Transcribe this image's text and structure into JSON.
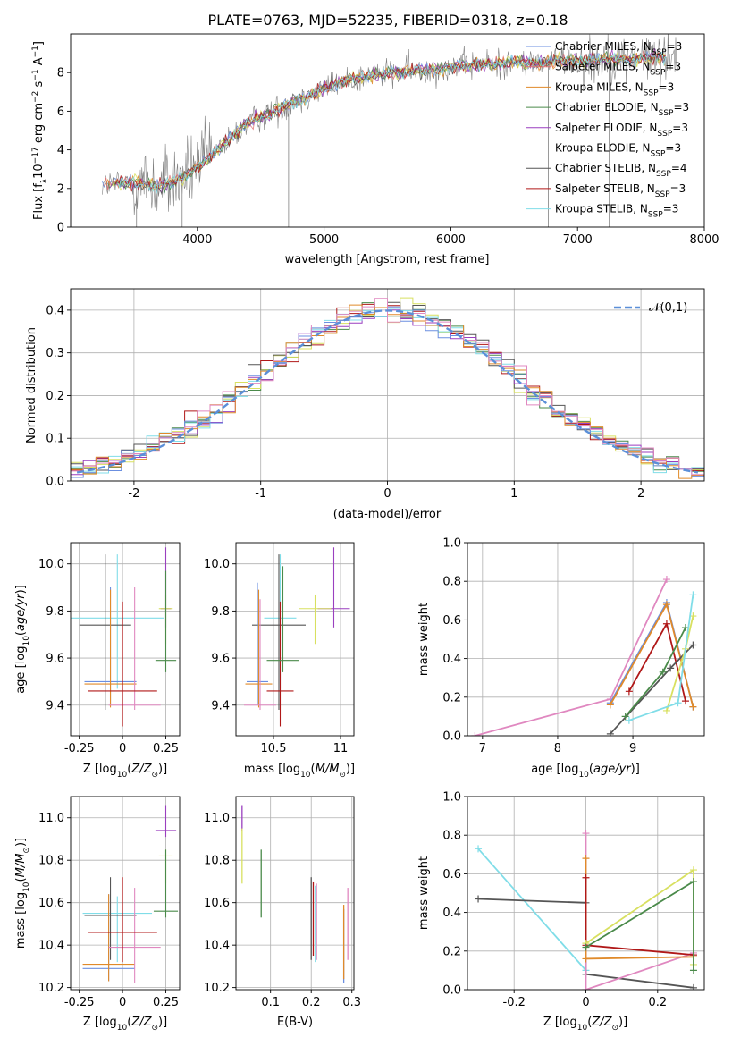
{
  "figure": {
    "title": "PLATE=0763, MJD=52235, FIBERID=0318, z=0.18",
    "colors": {
      "chabrier_miles": "#6b8fe0",
      "salpeter_miles": "#e07070",
      "kroupa_miles": "#e08a2a",
      "chabrier_elodie": "#4a8a4a",
      "salpeter_elodie": "#9a3fbf",
      "kroupa_elodie": "#d8e060",
      "chabrier_stelib": "#555555",
      "salpeter_stelib": "#b01818",
      "kroupa_stelib": "#80dde8",
      "pink": "#e088c0",
      "spectrum": "#808080",
      "gauss": "#5b8fd8"
    }
  },
  "chart_data": [
    {
      "id": "spectrum",
      "type": "line",
      "xlabel": "wavelength [Angstrom, rest frame]",
      "ylabel": "Flux [f_λ 10^-17 erg cm^-2 s^-1 A^-1]",
      "xlim": [
        3000,
        8000
      ],
      "ylim": [
        0,
        10
      ],
      "xticks": [
        4000,
        5000,
        6000,
        7000,
        8000
      ],
      "yticks": [
        0,
        2,
        4,
        6,
        8
      ],
      "grid": false,
      "legend_position": "top-right",
      "legend": [
        {
          "label": "Chabrier MILES, N",
          "nssp": "3"
        },
        {
          "label": "Salpeter MILES, N",
          "nssp": "3"
        },
        {
          "label": "Kroupa MILES, N",
          "nssp": "3"
        },
        {
          "label": "Chabrier ELODIE, N",
          "nssp": "3"
        },
        {
          "label": "Salpeter ELODIE, N",
          "nssp": "3"
        },
        {
          "label": "Kroupa ELODIE, N",
          "nssp": "3"
        },
        {
          "label": "Chabrier STELIB, N",
          "nssp": "4"
        },
        {
          "label": "Salpeter STELIB, N",
          "nssp": "3"
        },
        {
          "label": "Kroupa STELIB, N",
          "nssp": "3"
        }
      ],
      "legend_subscript": "SSP",
      "data_trend": {
        "x": [
          3250,
          3500,
          3700,
          3900,
          4000,
          4200,
          4400,
          4600,
          4800,
          5000,
          5200,
          5400,
          5600,
          5800,
          6000,
          6200,
          6400,
          6600,
          6800,
          7000,
          7200,
          7400,
          7600,
          7750
        ],
        "y": [
          2.2,
          2.3,
          2.1,
          2.6,
          3.1,
          4.2,
          5.4,
          6.0,
          6.6,
          7.2,
          7.6,
          7.9,
          8.0,
          8.1,
          8.3,
          8.4,
          8.5,
          8.5,
          8.6,
          8.6,
          8.7,
          8.7,
          8.8,
          8.8
        ]
      }
    },
    {
      "id": "residuals",
      "type": "line",
      "xlabel": "(data-model)/error",
      "ylabel": "Normed distribution",
      "xlim": [
        -2.5,
        2.5
      ],
      "ylim": [
        0,
        0.45
      ],
      "xticks": [
        -2,
        -1,
        0,
        1,
        2
      ],
      "yticks": [
        0.0,
        0.1,
        0.2,
        0.3,
        0.4
      ],
      "grid": true,
      "legend_position": "top-right",
      "gauss_label": "𝒩(0,1)"
    },
    {
      "id": "age_vs_z",
      "type": "scatter",
      "xlabel": "Z [log10(Z/Z⊙)]",
      "ylabel": "age  [log10(age/yr)]",
      "xlim": [
        -0.3,
        0.33
      ],
      "ylim": [
        9.27,
        10.09
      ],
      "xticks": [
        -0.25,
        0.0,
        0.25
      ],
      "yticks": [
        9.4,
        9.6,
        9.8,
        10.0
      ],
      "grid": true,
      "crosses": [
        {
          "color": "kroupa_stelib",
          "x": -0.03,
          "y": 9.77,
          "xerr": 0.27,
          "yerr": [
            0.3,
            0.27
          ]
        },
        {
          "color": "chabrier_stelib",
          "x": -0.1,
          "y": 9.74,
          "xerr": 0.15,
          "yerr": [
            0.36,
            0.3
          ]
        },
        {
          "color": "chabrier_miles",
          "x": -0.07,
          "y": 9.5,
          "xerr": 0.15,
          "yerr": [
            0.1,
            0.4
          ]
        },
        {
          "color": "kroupa_miles",
          "x": -0.07,
          "y": 9.49,
          "xerr": 0.15,
          "yerr": [
            0.1,
            0.4
          ]
        },
        {
          "color": "pink",
          "x": 0.07,
          "y": 9.4,
          "xerr": 0.15,
          "yerr": [
            0.02,
            0.5
          ]
        },
        {
          "color": "salpeter_stelib",
          "x": 0.0,
          "y": 9.46,
          "xerr": 0.2,
          "yerr": [
            0.15,
            0.38
          ]
        },
        {
          "color": "salpeter_elodie",
          "x": 0.25,
          "y": 9.81,
          "xerr": 0.03,
          "yerr": [
            0.08,
            0.26
          ]
        },
        {
          "color": "kroupa_elodie",
          "x": 0.25,
          "y": 9.81,
          "xerr": 0.04,
          "yerr": [
            0.15,
            0.06
          ]
        },
        {
          "color": "chabrier_elodie",
          "x": 0.25,
          "y": 9.59,
          "xerr": 0.06,
          "yerr": [
            0.05,
            0.38
          ]
        }
      ]
    },
    {
      "id": "age_vs_mass",
      "type": "scatter",
      "xlabel": "mass [log10(M/M⊙)]",
      "ylabel": "",
      "xlim": [
        10.22,
        11.1
      ],
      "ylim": [
        9.27,
        10.09
      ],
      "xticks": [
        10.5,
        11.0
      ],
      "yticks": [
        9.4,
        9.6,
        9.8,
        10.0
      ],
      "grid": true,
      "crosses": [
        {
          "color": "kroupa_stelib",
          "x": 10.55,
          "y": 9.77,
          "xerr": 0.12,
          "yerr": [
            0.3,
            0.27
          ]
        },
        {
          "color": "chabrier_stelib",
          "x": 10.54,
          "y": 9.74,
          "xerr": 0.2,
          "yerr": [
            0.36,
            0.3
          ]
        },
        {
          "color": "chabrier_miles",
          "x": 10.38,
          "y": 9.5,
          "xerr": 0.08,
          "yerr": [
            0.1,
            0.42
          ]
        },
        {
          "color": "kroupa_miles",
          "x": 10.39,
          "y": 9.49,
          "xerr": 0.1,
          "yerr": [
            0.1,
            0.4
          ]
        },
        {
          "color": "pink",
          "x": 10.4,
          "y": 9.4,
          "xerr": 0.12,
          "yerr": [
            0.02,
            0.45
          ]
        },
        {
          "color": "salpeter_stelib",
          "x": 10.55,
          "y": 9.46,
          "xerr": 0.1,
          "yerr": [
            0.15,
            0.38
          ]
        },
        {
          "color": "salpeter_elodie",
          "x": 10.95,
          "y": 9.81,
          "xerr": 0.12,
          "yerr": [
            0.08,
            0.26
          ]
        },
        {
          "color": "kroupa_elodie",
          "x": 10.81,
          "y": 9.81,
          "xerr": 0.12,
          "yerr": [
            0.15,
            0.06
          ]
        },
        {
          "color": "chabrier_elodie",
          "x": 10.57,
          "y": 9.59,
          "xerr": 0.12,
          "yerr": [
            0.05,
            0.4
          ]
        }
      ]
    },
    {
      "id": "weight_vs_age",
      "type": "line",
      "xlabel": "age  [log10(age/yr)]",
      "ylabel": "mass weight",
      "xlim": [
        6.8,
        9.95
      ],
      "ylim": [
        0,
        1
      ],
      "xticks": [
        7,
        8,
        9
      ],
      "yticks": [
        0.0,
        0.2,
        0.4,
        0.6,
        0.8,
        1.0
      ],
      "grid": true,
      "series": [
        {
          "color": "pink",
          "points": [
            [
              6.9,
              0.0
            ],
            [
              8.7,
              0.19
            ],
            [
              9.45,
              0.81
            ]
          ]
        },
        {
          "color": "chabrier_miles",
          "points": [
            [
              8.7,
              0.17
            ],
            [
              9.45,
              0.69
            ],
            [
              9.8,
              0.15
            ]
          ]
        },
        {
          "color": "kroupa_miles",
          "points": [
            [
              8.7,
              0.16
            ],
            [
              9.45,
              0.68
            ],
            [
              9.8,
              0.15
            ]
          ]
        },
        {
          "color": "salpeter_stelib",
          "points": [
            [
              8.95,
              0.23
            ],
            [
              9.45,
              0.58
            ],
            [
              9.7,
              0.18
            ]
          ]
        },
        {
          "color": "chabrier_stelib",
          "points": [
            [
              8.7,
              0.01
            ],
            [
              9.5,
              0.35
            ],
            [
              9.8,
              0.47
            ]
          ]
        },
        {
          "color": "chabrier_elodie",
          "points": [
            [
              8.9,
              0.1
            ],
            [
              9.4,
              0.33
            ],
            [
              9.7,
              0.56
            ]
          ]
        },
        {
          "color": "kroupa_elodie",
          "points": [
            [
              9.45,
              0.13
            ],
            [
              9.7,
              0.45
            ],
            [
              9.8,
              0.62
            ]
          ]
        },
        {
          "color": "kroupa_stelib",
          "points": [
            [
              8.95,
              0.08
            ],
            [
              9.6,
              0.17
            ],
            [
              9.8,
              0.73
            ]
          ]
        }
      ]
    },
    {
      "id": "mass_vs_z",
      "type": "scatter",
      "xlabel": "Z [log10(Z/Z⊙)]",
      "ylabel": "mass [log10(M/M⊙)]",
      "xlim": [
        -0.3,
        0.33
      ],
      "ylim": [
        10.19,
        11.1
      ],
      "xticks": [
        -0.25,
        0.0,
        0.25
      ],
      "yticks": [
        10.2,
        10.4,
        10.6,
        10.8,
        11.0
      ],
      "grid": true,
      "crosses": [
        {
          "color": "kroupa_stelib",
          "x": -0.03,
          "y": 10.55,
          "xerr": 0.2,
          "yerr": [
            0.23,
            0.08
          ]
        },
        {
          "color": "chabrier_stelib",
          "x": -0.07,
          "y": 10.54,
          "xerr": 0.15,
          "yerr": [
            0.21,
            0.18
          ]
        },
        {
          "color": "chabrier_miles",
          "x": -0.08,
          "y": 10.29,
          "xerr": 0.15,
          "yerr": [
            0.06,
            0.35
          ]
        },
        {
          "color": "kroupa_miles",
          "x": -0.08,
          "y": 10.31,
          "xerr": 0.15,
          "yerr": [
            0.08,
            0.33
          ]
        },
        {
          "color": "pink",
          "x": 0.07,
          "y": 10.39,
          "xerr": 0.15,
          "yerr": [
            0.17,
            0.28
          ]
        },
        {
          "color": "salpeter_stelib",
          "x": 0.0,
          "y": 10.46,
          "xerr": 0.2,
          "yerr": [
            0.14,
            0.26
          ]
        },
        {
          "color": "salpeter_elodie",
          "x": 0.25,
          "y": 10.94,
          "xerr": 0.06,
          "yerr": [
            0.03,
            0.12
          ]
        },
        {
          "color": "kroupa_elodie",
          "x": 0.25,
          "y": 10.82,
          "xerr": 0.04,
          "yerr": [
            0.13,
            0.03
          ]
        },
        {
          "color": "chabrier_elodie",
          "x": 0.25,
          "y": 10.56,
          "xerr": 0.07,
          "yerr": [
            0.03,
            0.29
          ]
        }
      ]
    },
    {
      "id": "mass_vs_ebv",
      "type": "scatter",
      "xlabel": "E(B-V)",
      "ylabel": "",
      "xlim": [
        0.015,
        0.305
      ],
      "ylim": [
        10.19,
        11.1
      ],
      "xticks": [
        0.1,
        0.2,
        0.3
      ],
      "yticks": [
        10.2,
        10.4,
        10.6,
        10.8,
        11.0
      ],
      "grid": true,
      "bars": [
        {
          "color": "salpeter_elodie",
          "x": 0.03,
          "y0": 10.94,
          "y1": 11.06
        },
        {
          "color": "kroupa_elodie",
          "x": 0.03,
          "y0": 10.69,
          "y1": 10.95
        },
        {
          "color": "chabrier_elodie",
          "x": 0.077,
          "y0": 10.53,
          "y1": 10.85
        },
        {
          "color": "chabrier_stelib",
          "x": 0.2,
          "y0": 10.33,
          "y1": 10.72
        },
        {
          "color": "salpeter_stelib",
          "x": 0.205,
          "y0": 10.35,
          "y1": 10.7
        },
        {
          "color": "kroupa_stelib",
          "x": 0.21,
          "y0": 10.32,
          "y1": 10.68
        },
        {
          "color": "pink",
          "x": 0.213,
          "y0": 10.33,
          "y1": 10.69
        },
        {
          "color": "chabrier_miles",
          "x": 0.28,
          "y0": 10.22,
          "y1": 10.57
        },
        {
          "color": "kroupa_miles",
          "x": 0.28,
          "y0": 10.24,
          "y1": 10.59
        },
        {
          "color": "pink",
          "x": 0.29,
          "y0": 10.33,
          "y1": 10.67
        }
      ]
    },
    {
      "id": "weight_vs_z",
      "type": "line",
      "xlabel": "Z [log10(Z/Z⊙)]",
      "ylabel": "mass weight",
      "xlim": [
        -0.33,
        0.33
      ],
      "ylim": [
        0,
        1
      ],
      "xticks": [
        -0.2,
        0.0,
        0.2
      ],
      "yticks": [
        0.0,
        0.2,
        0.4,
        0.6,
        0.8,
        1.0
      ],
      "grid": true,
      "series": [
        {
          "color": "kroupa_stelib",
          "points": [
            [
              -0.3,
              0.73
            ],
            [
              0.0,
              0.1
            ]
          ]
        },
        {
          "color": "chabrier_stelib",
          "points": [
            [
              -0.3,
              0.47
            ],
            [
              0.0,
              0.45
            ],
            [
              0.0,
              0.08
            ],
            [
              0.3,
              0.01
            ]
          ]
        },
        {
          "color": "pink",
          "points": [
            [
              0.0,
              0.81
            ],
            [
              0.0,
              0.0
            ],
            [
              0.3,
              0.19
            ]
          ]
        },
        {
          "color": "kroupa_miles",
          "points": [
            [
              0.0,
              0.68
            ],
            [
              0.0,
              0.16
            ],
            [
              0.3,
              0.17
            ]
          ]
        },
        {
          "color": "salpeter_stelib",
          "points": [
            [
              0.0,
              0.58
            ],
            [
              0.0,
              0.23
            ],
            [
              0.3,
              0.18
            ]
          ]
        },
        {
          "color": "kroupa_elodie",
          "points": [
            [
              0.0,
              0.24
            ],
            [
              0.3,
              0.62
            ],
            [
              0.3,
              0.13
            ]
          ]
        },
        {
          "color": "chabrier_elodie",
          "points": [
            [
              0.0,
              0.22
            ],
            [
              0.3,
              0.56
            ],
            [
              0.3,
              0.1
            ]
          ]
        }
      ]
    }
  ]
}
